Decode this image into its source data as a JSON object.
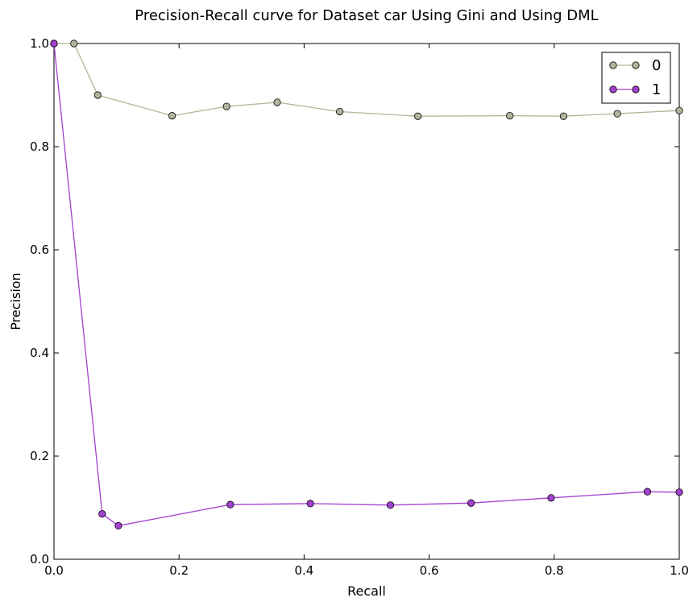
{
  "chart_data": {
    "type": "line",
    "title": "Precision-Recall curve for Dataset car Using Gini and Using DML",
    "xlabel": "Recall",
    "ylabel": "Precision",
    "xlim": [
      0.0,
      1.0
    ],
    "ylim": [
      0.0,
      1.0
    ],
    "xticks": [
      0.0,
      0.2,
      0.4,
      0.6,
      0.8,
      1.0
    ],
    "yticks": [
      0.0,
      0.2,
      0.4,
      0.6,
      0.8,
      1.0
    ],
    "xtick_labels": [
      "0.0",
      "0.2",
      "0.4",
      "0.6",
      "0.8",
      "1.0"
    ],
    "ytick_labels": [
      "0.0",
      "0.2",
      "0.4",
      "0.6",
      "0.8",
      "1.0"
    ],
    "grid": false,
    "legend_position": "top-right",
    "series": [
      {
        "name": "0",
        "color": "#b2b59b",
        "x": [
          0.0,
          0.032,
          0.07,
          0.189,
          0.276,
          0.357,
          0.457,
          0.582,
          0.729,
          0.815,
          0.901,
          1.0
        ],
        "y": [
          1.0,
          1.0,
          0.9,
          0.86,
          0.878,
          0.886,
          0.868,
          0.859,
          0.86,
          0.859,
          0.864,
          0.87
        ]
      },
      {
        "name": "1",
        "color": "#a341cf",
        "x": [
          0.0,
          0.077,
          0.103,
          0.282,
          0.41,
          0.538,
          0.667,
          0.795,
          0.949,
          1.0
        ],
        "y": [
          1.0,
          0.088,
          0.065,
          0.106,
          0.108,
          0.105,
          0.109,
          0.119,
          0.131,
          0.13
        ]
      }
    ]
  }
}
